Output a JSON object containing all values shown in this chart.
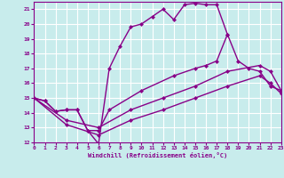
{
  "title": "",
  "xlabel": "Windchill (Refroidissement éolien,°C)",
  "bg_color": "#c8ecec",
  "line_color": "#880088",
  "grid_color": "#ffffff",
  "xmin": 0,
  "xmax": 23,
  "ymin": 12,
  "ymax": 21.5,
  "yticks": [
    12,
    13,
    14,
    15,
    16,
    17,
    18,
    19,
    20,
    21
  ],
  "xticks": [
    0,
    1,
    2,
    3,
    4,
    5,
    6,
    7,
    8,
    9,
    10,
    11,
    12,
    13,
    14,
    15,
    16,
    17,
    18,
    19,
    20,
    21,
    22,
    23
  ],
  "line1_x": [
    0,
    1,
    2,
    3,
    4,
    5,
    6,
    7,
    8,
    9,
    10,
    11,
    12,
    13,
    14,
    15,
    16,
    17,
    18
  ],
  "line1_y": [
    15.0,
    14.8,
    14.1,
    14.2,
    14.2,
    12.8,
    11.9,
    17.0,
    18.5,
    19.8,
    20.0,
    20.5,
    21.0,
    20.3,
    21.3,
    21.4,
    21.3,
    21.3,
    19.3
  ],
  "line2_x": [
    0,
    1,
    2,
    3,
    4,
    5,
    6,
    7,
    10,
    13,
    15,
    16,
    17,
    18,
    19,
    20,
    21,
    22,
    23
  ],
  "line2_y": [
    15.0,
    14.8,
    14.1,
    14.2,
    14.2,
    12.8,
    12.8,
    14.2,
    15.5,
    16.5,
    17.0,
    17.2,
    17.5,
    19.3,
    17.5,
    17.0,
    16.8,
    15.8,
    15.5
  ],
  "line3_x": [
    0,
    3,
    6,
    9,
    12,
    15,
    18,
    21,
    22,
    23
  ],
  "line3_y": [
    15.0,
    13.5,
    13.0,
    14.2,
    15.0,
    15.8,
    16.8,
    17.2,
    16.8,
    15.5
  ],
  "line4_x": [
    0,
    3,
    6,
    9,
    12,
    15,
    18,
    21,
    22,
    23
  ],
  "line4_y": [
    15.0,
    13.2,
    12.5,
    13.5,
    14.2,
    15.0,
    15.8,
    16.5,
    16.0,
    15.3
  ],
  "marker": "D",
  "markersize": 2.5,
  "linewidth": 1.0
}
